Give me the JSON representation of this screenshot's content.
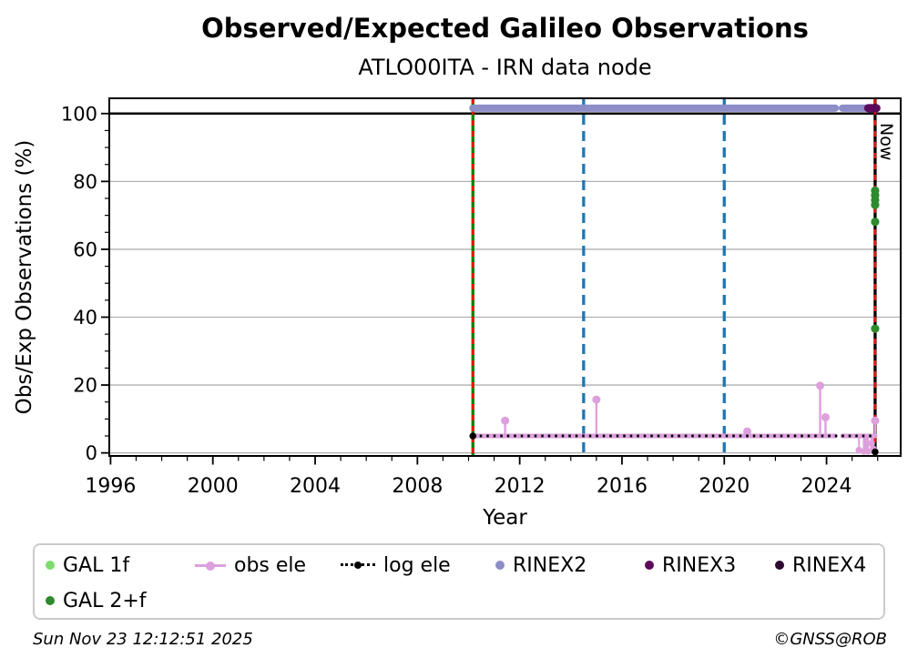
{
  "chart_data": {
    "type": "line",
    "title": "Observed/Expected Galileo Observations",
    "subtitle": "ATLO00ITA - IRN data node",
    "xlabel": "Year",
    "ylabel": "Obs/Exp Observations (%)",
    "xlim": [
      1995.95,
      2026.9
    ],
    "ylim": [
      -0.9,
      104.5
    ],
    "x_major_ticks": [
      1996,
      2000,
      2004,
      2008,
      2012,
      2016,
      2020,
      2024
    ],
    "x_minor_step": 1,
    "y_major_ticks": [
      0,
      20,
      40,
      60,
      80,
      100
    ],
    "y_minor_step": 5,
    "grid": "horizontal-major",
    "hline": {
      "y": 100,
      "color": "#000000"
    },
    "vlines": [
      {
        "name": "galileo-start-line",
        "x": 2010.17,
        "color": "#008000",
        "style": "solid",
        "overlay_red_dashed": true
      },
      {
        "name": "event-line-2014",
        "x": 2014.5,
        "color": "#1f77b4",
        "style": "dashed"
      },
      {
        "name": "event-line-2020",
        "x": 2020.0,
        "color": "#1f77b4",
        "style": "dashed"
      },
      {
        "name": "now-line",
        "x": 2025.9,
        "color": "#000000",
        "style": "solid",
        "overlay_red_dashed": true,
        "label": "Now"
      }
    ],
    "series": {
      "rinex2": {
        "label": "RINEX2",
        "y": 101.6,
        "segments": [
          [
            2010.17,
            2024.34
          ],
          [
            2024.62,
            2025.52
          ]
        ]
      },
      "rinex3": {
        "label": "RINEX3",
        "y": 101.6,
        "segments": [
          [
            2025.63,
            2025.95
          ]
        ]
      },
      "rinex4": {
        "label": "RINEX4",
        "points": []
      },
      "gal_1f": {
        "label": "GAL 1f",
        "points": []
      },
      "gal_2f": {
        "label": "GAL 2+f",
        "points": [
          [
            2025.9,
            77.3
          ],
          [
            2025.9,
            75.9
          ],
          [
            2025.9,
            74.5
          ],
          [
            2025.9,
            73.1
          ],
          [
            2025.9,
            68.1
          ],
          [
            2025.9,
            36.6
          ]
        ]
      },
      "obs_ele": {
        "label": "obs ele",
        "baseline": 5,
        "baseline_segments": [
          [
            2010.17,
            2024.34
          ],
          [
            2024.62,
            2025.9
          ]
        ],
        "spikes": [
          [
            2011.43,
            9.5
          ],
          [
            2015.0,
            15.7
          ],
          [
            2020.9,
            6.3
          ],
          [
            2023.75,
            19.8
          ],
          [
            2023.96,
            10.5
          ],
          [
            2025.9,
            9.5
          ]
        ],
        "dips": [
          [
            2025.27,
            0.8
          ],
          [
            2025.76,
            2.8
          ],
          [
            2025.82,
            1.2
          ]
        ],
        "dip_blob": {
          "x1": 2025.42,
          "x2": 2025.66,
          "y": 0.4
        }
      },
      "log_ele": {
        "label": "log ele",
        "baseline": 5,
        "segments": [
          [
            2010.17,
            2025.9
          ]
        ],
        "end_dots": [
          [
            2010.17,
            5.0
          ],
          [
            2025.9,
            0.3
          ]
        ]
      }
    },
    "colors": {
      "grid": "#b0b0b0",
      "frame": "#000000",
      "gal1f": "#7ddc6c",
      "gal2f": "#2e8b2e",
      "obs_ele": "#dda0dd",
      "log_ele": "#000000",
      "rinex2": "#8d8dc8",
      "rinex3": "#5c0b5c",
      "rinex4": "#2d092d",
      "event_green": "#008000",
      "event_blue": "#1f77b4",
      "event_red": "#ee1111",
      "now_black": "#000000"
    }
  },
  "legend": {
    "items": [
      {
        "label": "GAL 1f",
        "marker": "dot",
        "color": "#7ddc6c"
      },
      {
        "label": "obs ele",
        "marker": "line-dot",
        "color": "#dda0dd"
      },
      {
        "label": "log ele",
        "marker": "dotted-line-dot",
        "color": "#000000"
      },
      {
        "label": "RINEX2",
        "marker": "dot",
        "color": "#8d8dc8"
      },
      {
        "label": "RINEX3",
        "marker": "dot",
        "color": "#5c0b5c"
      },
      {
        "label": "RINEX4",
        "marker": "dot",
        "color": "#2d092d"
      },
      {
        "label": "GAL 2+f",
        "marker": "dot",
        "color": "#2e8b2e"
      }
    ]
  },
  "footer": {
    "timestamp": "Sun Nov 23 12:12:51 2025",
    "copyright": "©GNSS@ROB"
  }
}
